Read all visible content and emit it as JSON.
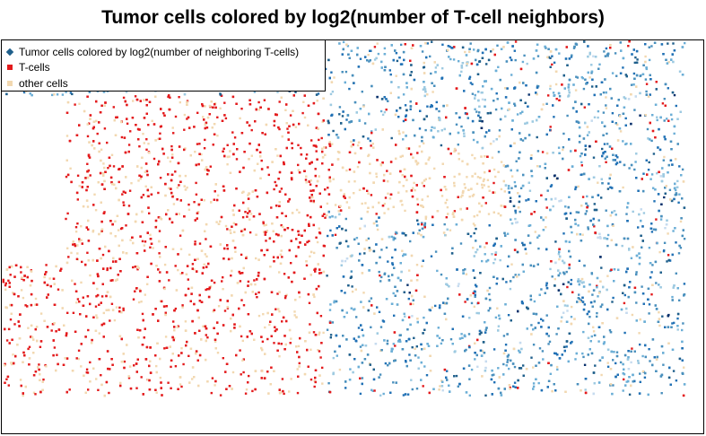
{
  "chart_data": {
    "type": "scatter",
    "title": "Tumor cells colored by log2(number of T-cell neighbors)",
    "xlabel": "",
    "ylabel": "",
    "axes_visible": false,
    "grid": false,
    "legend_position": "top-left",
    "series": [
      {
        "name": "Tumor cells colored by log2(number of neighboring T-cells)",
        "color": "#1f5f8b",
        "color_scale": [
          "#c6dbef",
          "#9ecae1",
          "#6baed6",
          "#4a90bd",
          "#2171b5",
          "#1f5f8b",
          "#08306b"
        ]
      },
      {
        "name": "T-cells",
        "color": "#e31a1c"
      },
      {
        "name": "other cells",
        "color": "#f2d8b0"
      }
    ]
  }
}
